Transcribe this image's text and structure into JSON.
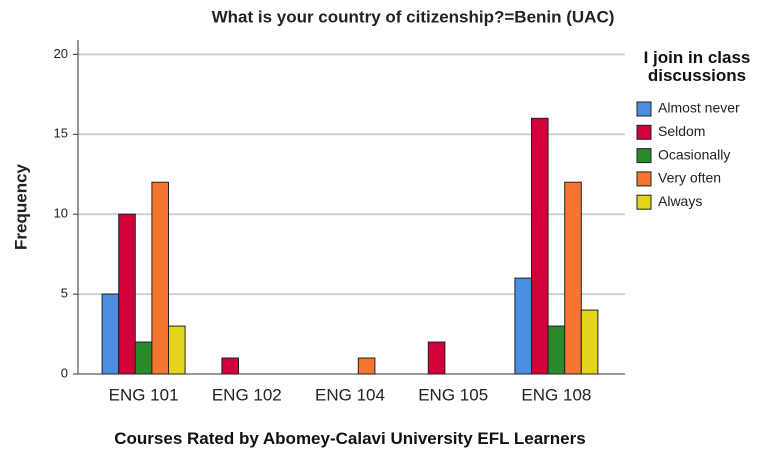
{
  "chart_data": {
    "type": "bar",
    "title": "What is your country of citizenship?=Benin (UAC)",
    "x_label": "Courses Rated by Abomey-Calavi University EFL Learners",
    "y_label": "Frequency",
    "legend_title": "I join in class discussions",
    "legend_position": "right",
    "categories": [
      "ENG 101",
      "ENG 102",
      "ENG 104",
      "ENG 105",
      "ENG 108"
    ],
    "series": [
      {
        "name": "Almost never",
        "color": "#4a8fe0",
        "values": [
          5,
          0,
          0,
          0,
          6
        ]
      },
      {
        "name": "Seldom",
        "color": "#d2003a",
        "values": [
          10,
          1,
          0,
          2,
          16
        ]
      },
      {
        "name": "Ocasionally",
        "color": "#2a8a2a",
        "values": [
          2,
          0,
          0,
          0,
          3
        ]
      },
      {
        "name": "Very often",
        "color": "#f4762e",
        "values": [
          12,
          0,
          1,
          0,
          12
        ]
      },
      {
        "name": "Always",
        "color": "#e4d41c",
        "values": [
          3,
          0,
          0,
          0,
          4
        ]
      }
    ],
    "ylim": [
      0,
      20.9
    ],
    "yticks": [
      0,
      5,
      10,
      15,
      20
    ],
    "grid": true
  }
}
